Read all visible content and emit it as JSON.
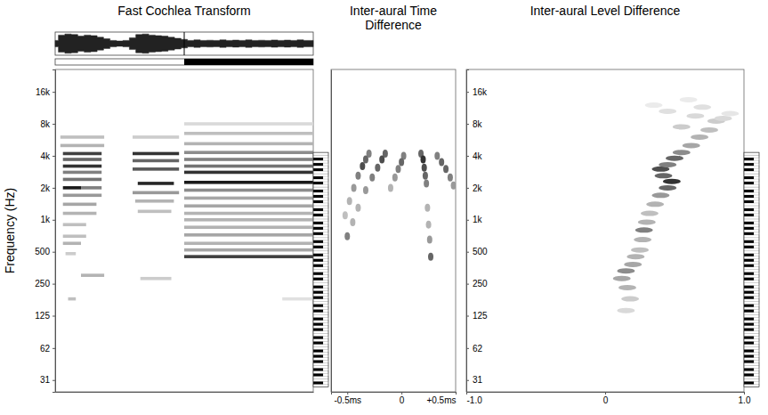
{
  "chart_data": [
    {
      "type": "heatmap",
      "title": "Fast Cochlea Transform",
      "y_label": "Frequency (Hz)",
      "log": "y",
      "tick_labels": "y",
      "xlim": [
        0,
        1
      ],
      "ylim": [
        24,
        26000
      ],
      "yticks": [
        {
          "value": 16000,
          "label": "16k"
        },
        {
          "value": 8000,
          "label": "8k"
        },
        {
          "value": 4000,
          "label": "4k"
        },
        {
          "value": 2000,
          "label": "2k"
        },
        {
          "value": 1000,
          "label": "1k"
        },
        500,
        250,
        125,
        62,
        31
      ],
      "level_range": [
        0,
        1
      ],
      "keyboard_range": [
        27.5,
        4186
      ],
      "selection": [
        0.5,
        1
      ],
      "waveform": {
        "x": [
          0,
          0.025,
          0.05,
          0.075,
          0.1,
          0.125,
          0.15,
          0.175,
          0.2,
          0.225,
          0.25,
          0.275,
          0.3,
          0.325,
          0.35,
          0.375,
          0.4,
          0.425,
          0.45,
          0.475,
          0.5,
          0.525,
          0.55,
          0.575,
          0.6,
          0.625,
          0.65,
          0.675,
          0.7,
          0.725,
          0.75,
          0.775,
          0.8,
          0.825,
          0.85,
          0.875,
          0.9,
          0.925,
          0.95,
          0.975,
          1
        ],
        "values": [
          0.3,
          0.8,
          0.9,
          0.85,
          0.7,
          0.8,
          0.75,
          0.6,
          0.45,
          0.3,
          0.25,
          0.3,
          0.55,
          0.85,
          0.9,
          0.8,
          0.75,
          0.7,
          0.6,
          0.5,
          0.4,
          0.3,
          0.35,
          0.3,
          0.32,
          0.3,
          0.35,
          0.3,
          0.33,
          0.3,
          0.35,
          0.3,
          0.32,
          0.3,
          0.34,
          0.3,
          0.33,
          0.3,
          0.35,
          0.3,
          0.3
        ]
      },
      "cells": [
        [
          0.02,
          0.19,
          6000,
          0.25
        ],
        [
          0.02,
          0.19,
          5000,
          0.3
        ],
        [
          0.03,
          0.18,
          4200,
          0.75
        ],
        [
          0.03,
          0.18,
          3700,
          0.6
        ],
        [
          0.03,
          0.18,
          3200,
          0.8
        ],
        [
          0.03,
          0.18,
          2800,
          0.5
        ],
        [
          0.03,
          0.18,
          2400,
          0.55
        ],
        [
          0.03,
          0.1,
          2000,
          0.9
        ],
        [
          0.1,
          0.18,
          2000,
          0.5
        ],
        [
          0.03,
          0.18,
          1700,
          0.4
        ],
        [
          0.03,
          0.16,
          1400,
          0.35
        ],
        [
          0.03,
          0.16,
          1150,
          0.3
        ],
        [
          0.03,
          0.12,
          900,
          0.25
        ],
        [
          0.03,
          0.12,
          700,
          0.25
        ],
        [
          0.03,
          0.1,
          600,
          0.3
        ],
        [
          0.04,
          0.08,
          480,
          0.2
        ],
        [
          0.1,
          0.19,
          300,
          0.3
        ],
        [
          0.05,
          0.08,
          180,
          0.25
        ],
        [
          0.3,
          0.48,
          6000,
          0.2
        ],
        [
          0.3,
          0.48,
          4200,
          0.8
        ],
        [
          0.3,
          0.48,
          3600,
          0.6
        ],
        [
          0.3,
          0.48,
          3000,
          0.65
        ],
        [
          0.32,
          0.46,
          2200,
          0.85
        ],
        [
          0.3,
          0.48,
          1800,
          0.4
        ],
        [
          0.31,
          0.46,
          1500,
          0.3
        ],
        [
          0.32,
          0.45,
          1200,
          0.25
        ],
        [
          0.33,
          0.45,
          280,
          0.2
        ],
        [
          0.5,
          1,
          8000,
          0.15
        ],
        [
          0.5,
          1,
          6500,
          0.25
        ],
        [
          0.5,
          1,
          5200,
          0.3
        ],
        [
          0.5,
          1,
          4300,
          0.45
        ],
        [
          0.5,
          1,
          3700,
          0.5
        ],
        [
          0.5,
          1,
          3200,
          0.55
        ],
        [
          0.5,
          1,
          2800,
          0.8
        ],
        [
          0.5,
          1,
          2250,
          0.9
        ],
        [
          0.5,
          1,
          1900,
          0.45
        ],
        [
          0.5,
          1,
          1600,
          0.35
        ],
        [
          0.5,
          1,
          1350,
          0.35
        ],
        [
          0.5,
          1,
          1150,
          0.3
        ],
        [
          0.5,
          1,
          1000,
          0.3
        ],
        [
          0.5,
          1,
          850,
          0.3
        ],
        [
          0.5,
          1,
          720,
          0.35
        ],
        [
          0.5,
          1,
          600,
          0.3
        ],
        [
          0.5,
          1,
          520,
          0.35
        ],
        [
          0.5,
          1,
          450,
          0.75
        ],
        [
          0.88,
          1,
          180,
          0.12
        ]
      ]
    },
    {
      "type": "scatter",
      "title": "Inter-aural Time Difference",
      "marker": "blob",
      "log": "y",
      "tick_labels": "x",
      "xlim": [
        -0.65,
        0.5
      ],
      "ylim": [
        24,
        26000
      ],
      "xticks": [
        {
          "value": -0.5,
          "label": "-0.5ms"
        },
        0,
        {
          "value": 0.5,
          "label": "+0.5ms"
        }
      ],
      "level_range": [
        0,
        1
      ],
      "points": [
        [
          -0.3,
          4200,
          0.5
        ],
        [
          -0.33,
          3700,
          0.6
        ],
        [
          -0.36,
          3200,
          0.7
        ],
        [
          -0.4,
          2600,
          0.5
        ],
        [
          -0.44,
          2000,
          0.4
        ],
        [
          -0.48,
          1500,
          0.3
        ],
        [
          -0.52,
          1100,
          0.25
        ],
        [
          -0.15,
          4200,
          0.6
        ],
        [
          -0.18,
          3700,
          0.7
        ],
        [
          -0.22,
          3100,
          0.6
        ],
        [
          -0.27,
          2500,
          0.5
        ],
        [
          -0.33,
          1900,
          0.4
        ],
        [
          -0.4,
          1300,
          0.3
        ],
        [
          -0.45,
          950,
          0.3
        ],
        [
          -0.5,
          700,
          0.5
        ],
        [
          0.02,
          4000,
          0.5
        ],
        [
          0,
          3500,
          0.6
        ],
        [
          -0.03,
          3000,
          0.5
        ],
        [
          -0.06,
          2500,
          0.4
        ],
        [
          -0.1,
          2000,
          0.3
        ],
        [
          0.18,
          4200,
          0.6
        ],
        [
          0.2,
          3700,
          0.8
        ],
        [
          0.21,
          3100,
          0.7
        ],
        [
          0.22,
          2600,
          0.6
        ],
        [
          0.23,
          2200,
          0.5
        ],
        [
          0.24,
          1300,
          0.3
        ],
        [
          0.25,
          900,
          0.3
        ],
        [
          0.26,
          650,
          0.4
        ],
        [
          0.27,
          450,
          0.6
        ],
        [
          0.33,
          4000,
          0.5
        ],
        [
          0.37,
          3500,
          0.6
        ],
        [
          0.41,
          3000,
          0.6
        ],
        [
          0.45,
          2500,
          0.5
        ],
        [
          0.48,
          2100,
          0.4
        ]
      ]
    },
    {
      "type": "scatter",
      "title": "Inter-aural Level Difference",
      "marker": "smear",
      "log": "y",
      "xlim": [
        -1,
        1
      ],
      "ylim": [
        24,
        26000
      ],
      "xticks": [
        {
          "value": -1,
          "label": "-1.0"
        },
        0,
        {
          "value": 1,
          "label": "1.0"
        }
      ],
      "yticks": [
        {
          "value": 16000,
          "label": "16k"
        },
        {
          "value": 8000,
          "label": "8k"
        },
        {
          "value": 4000,
          "label": "4k"
        },
        {
          "value": 2000,
          "label": "2k"
        },
        {
          "value": 1000,
          "label": "1k"
        },
        500,
        250,
        125,
        62,
        31
      ],
      "level_range": [
        0,
        1
      ],
      "keyboard_range": [
        27.5,
        4186
      ],
      "points": [
        [
          0.15,
          140,
          0.15
        ],
        [
          0.18,
          180,
          0.2
        ],
        [
          0.16,
          230,
          0.3
        ],
        [
          0.12,
          280,
          0.35
        ],
        [
          0.15,
          330,
          0.45
        ],
        [
          0.2,
          380,
          0.35
        ],
        [
          0.22,
          450,
          0.3
        ],
        [
          0.25,
          520,
          0.25
        ],
        [
          0.27,
          650,
          0.3
        ],
        [
          0.28,
          800,
          0.5
        ],
        [
          0.3,
          950,
          0.3
        ],
        [
          0.32,
          1150,
          0.25
        ],
        [
          0.36,
          1400,
          0.3
        ],
        [
          0.4,
          1700,
          0.4
        ],
        [
          0.45,
          2000,
          0.6
        ],
        [
          0.48,
          2300,
          0.8
        ],
        [
          0.42,
          2600,
          0.6
        ],
        [
          0.4,
          3000,
          0.7
        ],
        [
          0.45,
          3300,
          0.5
        ],
        [
          0.5,
          3800,
          0.6
        ],
        [
          0.55,
          4300,
          0.45
        ],
        [
          0.62,
          5000,
          0.35
        ],
        [
          0.68,
          6000,
          0.3
        ],
        [
          0.75,
          7000,
          0.25
        ],
        [
          0.55,
          7500,
          0.2
        ],
        [
          0.8,
          8500,
          0.2
        ],
        [
          0.65,
          9500,
          0.15
        ],
        [
          0.45,
          10500,
          0.12
        ],
        [
          0.85,
          9000,
          0.15
        ],
        [
          0.7,
          11500,
          0.12
        ],
        [
          0.35,
          12000,
          0.08
        ],
        [
          0.6,
          13500,
          0.08
        ],
        [
          0.9,
          10000,
          0.1
        ]
      ]
    }
  ]
}
